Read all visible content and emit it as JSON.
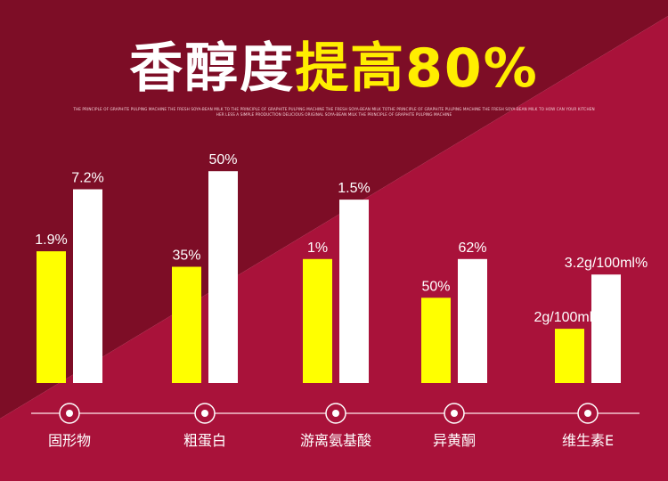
{
  "title": {
    "part1": "香醇度",
    "part2": "提高80%"
  },
  "subtitle": "THE PRINCIPLE OF GRAPHITE PULPING MACHINE THE FRESH SOYA-BEAN MILK TO THE PRINCIPLE OF GRAPHITE PULPING MACHINE THE FRESH SOYA-BEAN MILK TOTHE PRINCIPLE OF GRAPHITE PULPING MACHINE THE FRESH SOYA-BEAN MILK TO HOW CAN YOUR KITCHEN HER LESS A SIMPLE PRODUCTION DELICIOUS ORIGINAL SOYA-BEAN MILK THE PRINCIPLE OF GRAPHITE PULPING MACHINE",
  "colors": {
    "bg_dark": "#7d0d26",
    "bg_light": "#a9123a",
    "bar_yellow": "#ffff00",
    "bar_white": "#ffffff"
  },
  "chart_data": {
    "type": "bar",
    "categories": [
      "固形物",
      "粗蛋白",
      "游离氨基酸",
      "异黄酮",
      "维生素E"
    ],
    "series": [
      {
        "color": "#ffff00",
        "labels": [
          "1.9%",
          "35%",
          "1%",
          "50%",
          "2g/100ml%"
        ],
        "heights": [
          0.51,
          0.45,
          0.48,
          0.33,
          0.21
        ]
      },
      {
        "color": "#ffffff",
        "labels": [
          "7.2%",
          "50%",
          "1.5%",
          "62%",
          "3.2g/100ml%"
        ],
        "heights": [
          0.75,
          0.82,
          0.71,
          0.48,
          0.42
        ]
      }
    ],
    "grid": false,
    "legend": "none"
  }
}
